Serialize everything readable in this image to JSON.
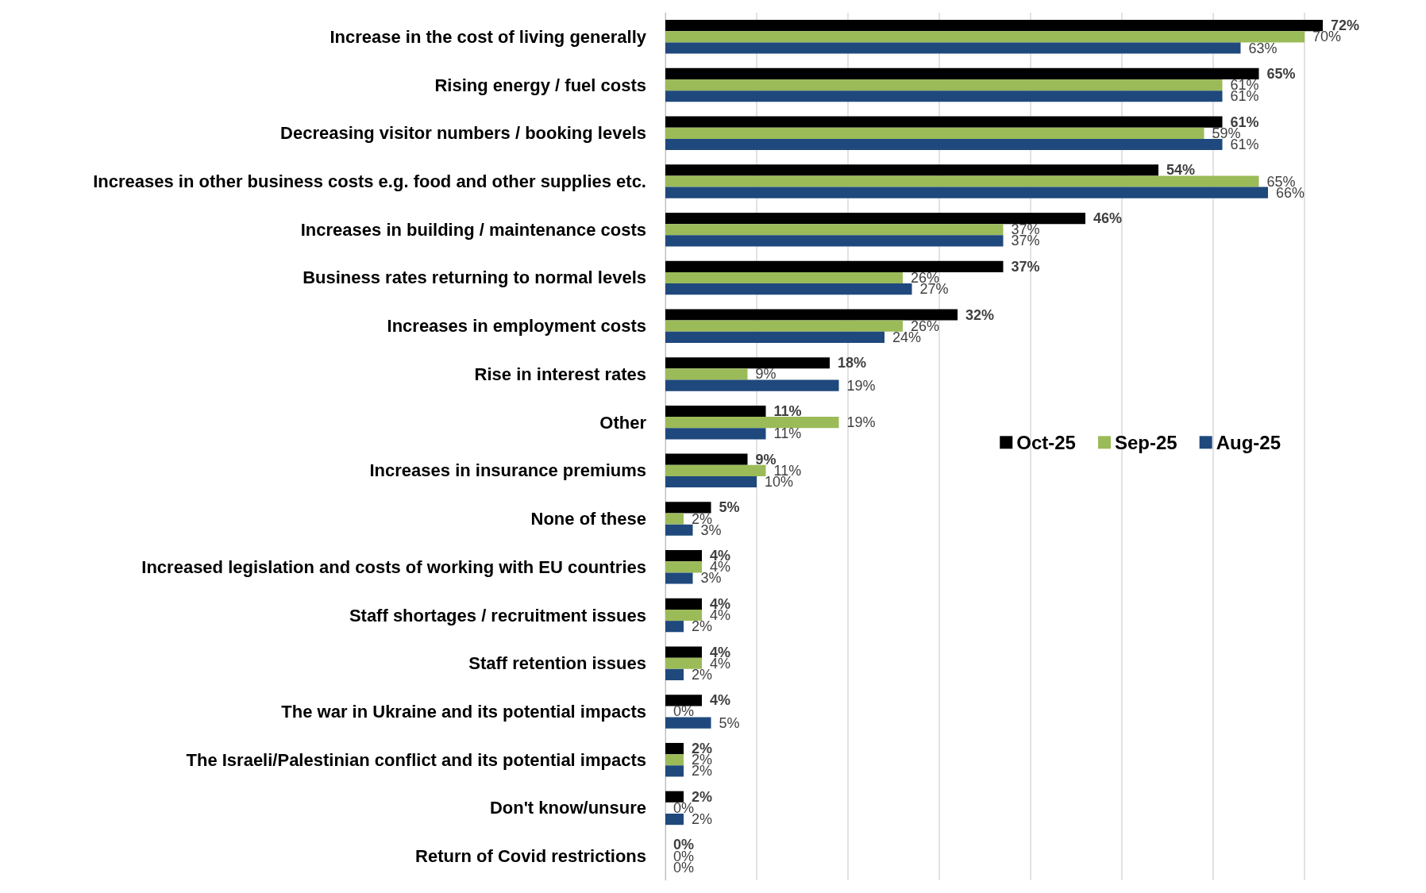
{
  "chart_data": {
    "type": "bar",
    "orientation": "horizontal",
    "categories": [
      "Increase in the cost of living generally",
      "Rising energy / fuel costs",
      "Decreasing visitor numbers / booking levels",
      "Increases in other business costs e.g. food and other supplies etc.",
      "Increases in building / maintenance costs",
      "Business rates returning to normal levels",
      "Increases in employment costs",
      "Rise in interest rates",
      "Other",
      "Increases in insurance premiums",
      "None of these",
      "Increased legislation and costs of working with EU countries",
      "Staff shortages / recruitment issues",
      "Staff retention issues",
      "The war in Ukraine and its potential impacts",
      "The Israeli/Palestinian conflict and its potential impacts",
      "Don't know/unsure",
      "Return of Covid restrictions"
    ],
    "series": [
      {
        "name": "Oct-25",
        "color": "#000000",
        "values": [
          72,
          65,
          61,
          54,
          46,
          37,
          32,
          18,
          11,
          9,
          5,
          4,
          4,
          4,
          4,
          2,
          2,
          0
        ],
        "value_labels": [
          "72%",
          "65%",
          "61%",
          "54%",
          "46%",
          "37%",
          "32%",
          "18%",
          "11%",
          "9%",
          "5%",
          "4%",
          "4%",
          "4%",
          "4%",
          "2%",
          "2%",
          "0%"
        ]
      },
      {
        "name": "Sep-25",
        "color": "#9bbb59",
        "values": [
          70,
          61,
          59,
          65,
          37,
          26,
          26,
          9,
          19,
          11,
          2,
          4,
          4,
          4,
          0,
          2,
          0,
          0
        ],
        "value_labels": [
          "70%",
          "61%",
          "59%",
          "65%",
          "37%",
          "26%",
          "26%",
          "9%",
          "19%",
          "11%",
          "2%",
          "4%",
          "4%",
          "4%",
          "0%",
          "2%",
          "0%",
          "0%"
        ]
      },
      {
        "name": "Aug-25",
        "color": "#1f497d",
        "values": [
          63,
          61,
          61,
          66,
          37,
          27,
          24,
          19,
          11,
          10,
          3,
          3,
          2,
          2,
          5,
          2,
          2,
          0
        ],
        "value_labels": [
          "63%",
          "61%",
          "61%",
          "66%",
          "37%",
          "27%",
          "24%",
          "19%",
          "11%",
          "10%",
          "3%",
          "3%",
          "2%",
          "2%",
          "5%",
          "2%",
          "2%",
          "0%"
        ]
      }
    ],
    "xticks": [
      {
        "value": 0,
        "label": null
      },
      {
        "value": 10,
        "label": null
      },
      {
        "value": 20,
        "label": null
      },
      {
        "value": 30,
        "label": null
      },
      {
        "value": 40,
        "label": null
      },
      {
        "value": 50,
        "label": null
      },
      {
        "value": 60,
        "label": null
      },
      {
        "value": 70,
        "label": null
      }
    ],
    "tick_labels": "y",
    "grid": "x",
    "legend": "right"
  }
}
